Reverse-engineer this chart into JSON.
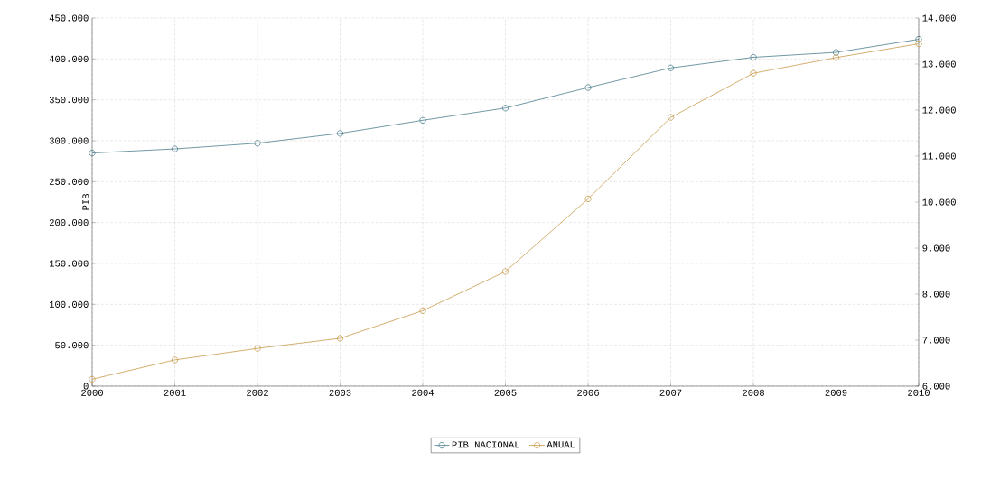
{
  "chart_data": {
    "type": "line",
    "ylabel": "PIB",
    "x": [
      2000,
      2001,
      2002,
      2003,
      2004,
      2005,
      2006,
      2007,
      2008,
      2009,
      2010
    ],
    "series": [
      {
        "name": "PIB NACIONAL",
        "color": "#4d7f8f",
        "values": [
          285000,
          290000,
          297000,
          309000,
          325000,
          340000,
          365000,
          389000,
          402000,
          408000,
          424000
        ]
      },
      {
        "name": "ANUAL",
        "color": "#c89a4a",
        "axis": "y2",
        "values": [
          6150,
          6570,
          6820,
          7040,
          7640,
          8490,
          10070,
          11840,
          12800,
          13140,
          13440
        ]
      }
    ],
    "xlim": [
      2000,
      2010
    ],
    "xticks": [
      2000,
      2001,
      2002,
      2003,
      2004,
      2005,
      2006,
      2007,
      2008,
      2009,
      2010
    ],
    "ylim": [
      0,
      450000
    ],
    "yticks": [
      {
        "value": 0,
        "label": "0"
      },
      {
        "value": 50000,
        "label": "50.000"
      },
      {
        "value": 100000,
        "label": "100.000"
      },
      {
        "value": 150000,
        "label": "150.000"
      },
      {
        "value": 200000,
        "label": "200.000"
      },
      {
        "value": 250000,
        "label": "250.000"
      },
      {
        "value": 300000,
        "label": "300.000"
      },
      {
        "value": 350000,
        "label": "350.000"
      },
      {
        "value": 400000,
        "label": "400.000"
      },
      {
        "value": 450000,
        "label": "450.000"
      }
    ],
    "y2lim": [
      6000,
      14000
    ],
    "y2ticks": [
      {
        "value": 6000,
        "label": "6.000"
      },
      {
        "value": 7000,
        "label": "7.000"
      },
      {
        "value": 8000,
        "label": "8.000"
      },
      {
        "value": 9000,
        "label": "9.000"
      },
      {
        "value": 10000,
        "label": "10.000"
      },
      {
        "value": 11000,
        "label": "11.000"
      },
      {
        "value": 12000,
        "label": "12.000"
      },
      {
        "value": 13000,
        "label": "13.000"
      },
      {
        "value": 14000,
        "label": "14.000"
      }
    ],
    "grid": true,
    "legend": "bottom",
    "marker": "circle",
    "line_style": "solid"
  }
}
